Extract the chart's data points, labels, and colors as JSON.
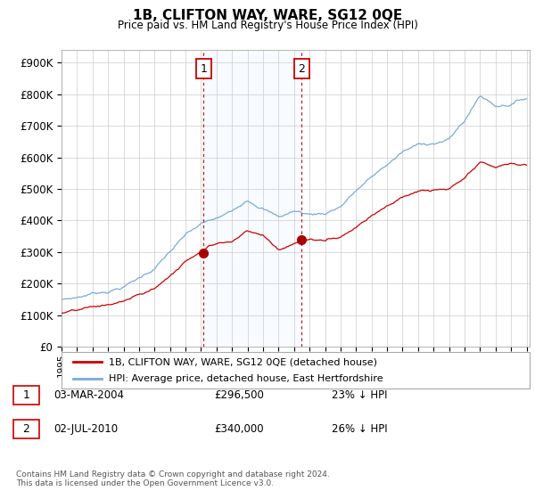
{
  "title": "1B, CLIFTON WAY, WARE, SG12 0QE",
  "subtitle": "Price paid vs. HM Land Registry's House Price Index (HPI)",
  "ylabel_ticks": [
    "£0",
    "£100K",
    "£200K",
    "£300K",
    "£400K",
    "£500K",
    "£600K",
    "£700K",
    "£800K",
    "£900K"
  ],
  "ytick_values": [
    0,
    100000,
    200000,
    300000,
    400000,
    500000,
    600000,
    700000,
    800000,
    900000
  ],
  "ylim": [
    0,
    940000
  ],
  "xlim_start": 1995.0,
  "xlim_end": 2025.2,
  "hpi_color": "#7aaadd",
  "price_color": "#cc0000",
  "marker_color": "#aa0000",
  "annotation_box_color": "#cc0000",
  "shade_color": "#ddeeff",
  "sale1_x": 2004.17,
  "sale1_y": 296500,
  "sale1_label": "1",
  "sale2_x": 2010.5,
  "sale2_y": 340000,
  "sale2_label": "2",
  "legend_label_price": "1B, CLIFTON WAY, WARE, SG12 0QE (detached house)",
  "legend_label_hpi": "HPI: Average price, detached house, East Hertfordshire",
  "table_row1": [
    "1",
    "03-MAR-2004",
    "£296,500",
    "23% ↓ HPI"
  ],
  "table_row2": [
    "2",
    "02-JUL-2010",
    "£340,000",
    "26% ↓ HPI"
  ],
  "footer": "Contains HM Land Registry data © Crown copyright and database right 2024.\nThis data is licensed under the Open Government Licence v3.0.",
  "background_color": "#ffffff",
  "grid_color": "#cccccc"
}
